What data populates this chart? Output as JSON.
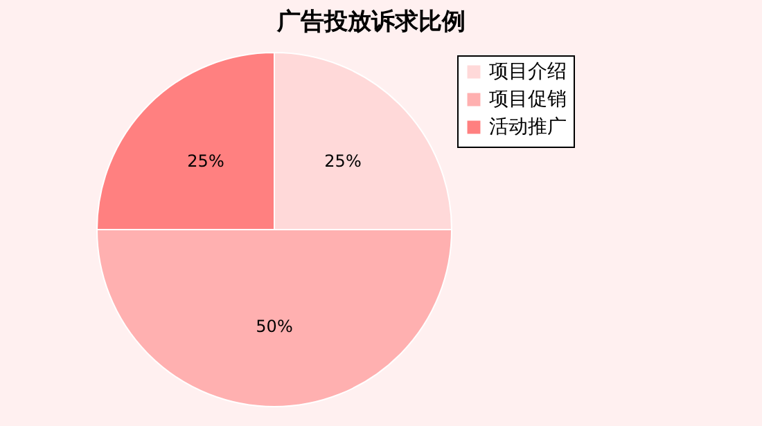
{
  "chart_data": {
    "type": "pie",
    "title": "广告投放诉求比例",
    "categories": [
      "项目介绍",
      "项目促销",
      "活动推广"
    ],
    "values": [
      25,
      50,
      25
    ],
    "colors": [
      "#ffd9d9",
      "#ffb0b0",
      "#ff8080"
    ],
    "value_labels": [
      "25%",
      "50%",
      "25%"
    ],
    "legend": "top right"
  }
}
